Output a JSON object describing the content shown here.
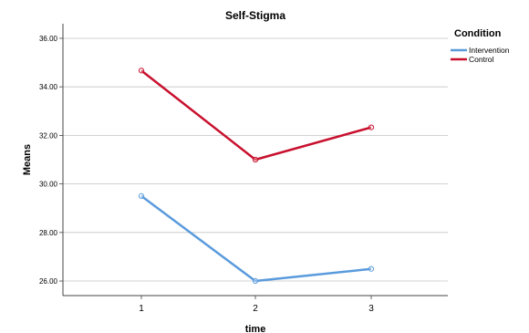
{
  "chart_data": {
    "type": "line",
    "title": "Self-Stigma",
    "xlabel": "time",
    "ylabel": "Means",
    "categories": [
      "1",
      "2",
      "3"
    ],
    "ylim": [
      25.4,
      36.6
    ],
    "yticks": [
      "26.00",
      "28.00",
      "30.00",
      "32.00",
      "34.00",
      "36.00"
    ],
    "grid": "horizontal",
    "legend": {
      "title": "Condition",
      "placement": "right"
    },
    "series": [
      {
        "name": "Intervention",
        "color": "#5a9bdc",
        "values": [
          29.5,
          26.0,
          26.5
        ]
      },
      {
        "name": "Control",
        "color": "#c8102e",
        "values": [
          34.67,
          31.0,
          32.33
        ]
      }
    ]
  }
}
